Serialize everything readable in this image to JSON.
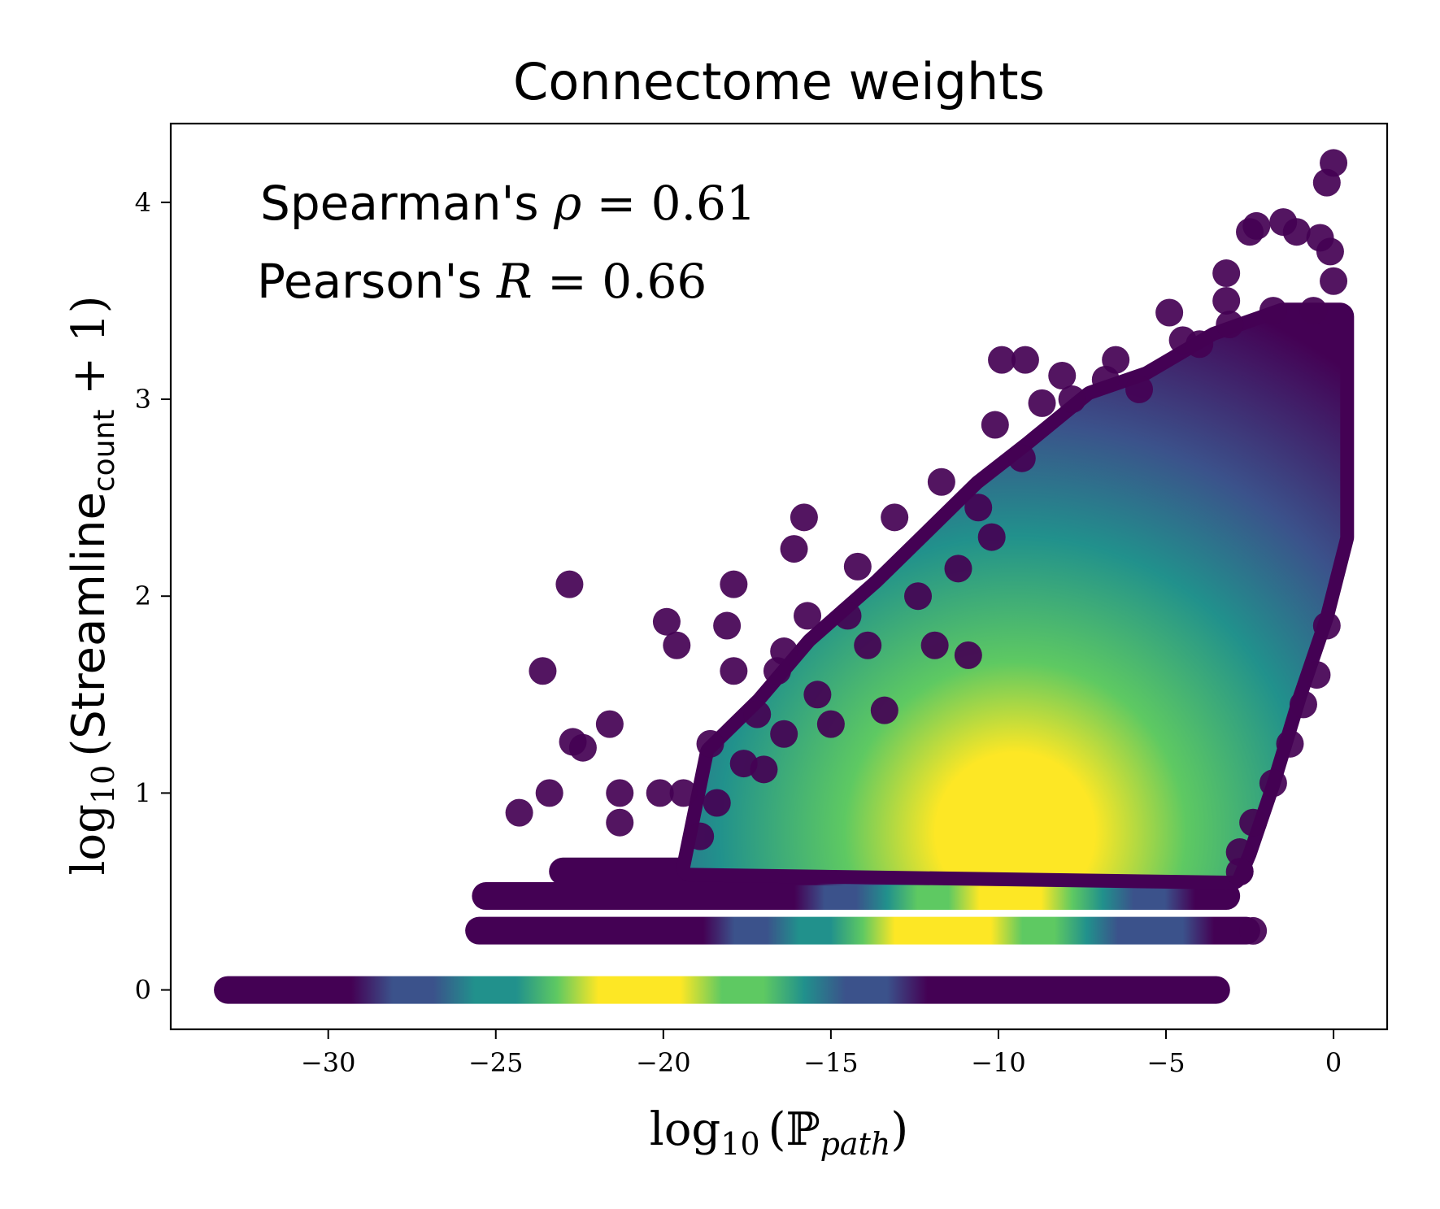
{
  "chart_data": {
    "type": "scatter",
    "title": "Connectome weights",
    "xlabel": {
      "prefix": "log",
      "sub": "10",
      "open": "(",
      "symbol": "ℙ",
      "symbol_sub": "path",
      "close": ")"
    },
    "ylabel": {
      "prefix": "log",
      "sub": "10",
      "open": "(",
      "word": "Streamline",
      "word_sub": "count",
      "rest": " + 1",
      "close": ")"
    },
    "xlim": [
      -34.7,
      1.6
    ],
    "ylim": [
      -0.2,
      4.4
    ],
    "xticks": [
      -30,
      -25,
      -20,
      -15,
      -10,
      -5,
      0
    ],
    "xtick_labels": [
      "−30",
      "−25",
      "−20",
      "−15",
      "−10",
      "−5",
      "0"
    ],
    "yticks": [
      0,
      1,
      2,
      3,
      4
    ],
    "ytick_labels": [
      "0",
      "1",
      "2",
      "3",
      "4"
    ],
    "annotations": [
      {
        "name": "Spearman's ",
        "symbol": "ρ",
        "value": " = 0.61"
      },
      {
        "name": "Pearson's ",
        "symbol": "R",
        "value": " = 0.66"
      }
    ],
    "colormap": [
      "#440154",
      "#3b528b",
      "#21918c",
      "#5ec962",
      "#fde725"
    ],
    "point_color": "#440154",
    "bands": [
      {
        "y": 0,
        "x": [
          -33,
          -3.5
        ],
        "peak_x": -20.5,
        "spread": 5.5
      },
      {
        "y": 0.301,
        "x": [
          -25.5,
          -2.6
        ],
        "peak_x": -11.5,
        "spread": 5.0
      },
      {
        "y": 0.477,
        "x": [
          -25.3,
          -3.2
        ],
        "peak_x": -10.0,
        "spread": 4.0
      },
      {
        "y": 0.602,
        "x": [
          -23.0,
          -2.8
        ],
        "peak_x": -9.5,
        "spread": 4.0
      }
    ],
    "sparse_points": [
      [
        -22.8,
        2.06
      ],
      [
        -19.9,
        1.87
      ],
      [
        -19.6,
        1.75
      ],
      [
        -23.6,
        1.62
      ],
      [
        -22.7,
        1.26
      ],
      [
        -22.4,
        1.23
      ],
      [
        -21.6,
        1.35
      ],
      [
        -23.4,
        1.0
      ],
      [
        -24.3,
        0.9
      ],
      [
        -21.3,
        1.0
      ],
      [
        -21.3,
        0.85
      ],
      [
        -20.1,
        1.0
      ],
      [
        -19.4,
        1.0
      ],
      [
        -17.9,
        2.06
      ],
      [
        -18.1,
        1.85
      ],
      [
        -17.9,
        1.62
      ],
      [
        -17.2,
        1.4
      ],
      [
        -18.6,
        1.25
      ],
      [
        -15.8,
        2.4
      ],
      [
        -16.1,
        2.24
      ],
      [
        -14.2,
        2.15
      ],
      [
        -13.1,
        2.4
      ],
      [
        -11.7,
        2.58
      ],
      [
        -10.1,
        2.87
      ],
      [
        -8.1,
        3.12
      ],
      [
        -9.2,
        3.2
      ],
      [
        -9.9,
        3.2
      ],
      [
        -6.5,
        3.2
      ],
      [
        -4.9,
        3.44
      ],
      [
        -3.2,
        3.5
      ],
      [
        -3.2,
        3.64
      ],
      [
        -3.1,
        3.38
      ],
      [
        -2.5,
        3.85
      ],
      [
        -2.3,
        3.88
      ],
      [
        -1.5,
        3.9
      ],
      [
        -1.1,
        3.85
      ],
      [
        -0.4,
        3.82
      ],
      [
        -0.2,
        4.1
      ],
      [
        0,
        4.2
      ],
      [
        0,
        3.6
      ],
      [
        -0.2,
        1.85
      ],
      [
        -0.5,
        1.6
      ],
      [
        -0.9,
        1.45
      ],
      [
        -1.3,
        1.25
      ],
      [
        -1.8,
        1.05
      ],
      [
        -2.4,
        0.85
      ],
      [
        -2.8,
        0.7
      ],
      [
        -2.4,
        0.3
      ],
      [
        -2.8,
        0.6
      ],
      [
        -14.5,
        1.9
      ],
      [
        -15.7,
        1.9
      ],
      [
        -16.4,
        1.72
      ],
      [
        -16.6,
        1.62
      ],
      [
        -15.4,
        1.5
      ],
      [
        -13.9,
        1.75
      ],
      [
        -12.4,
        2.0
      ],
      [
        -11.2,
        2.14
      ],
      [
        -10.6,
        2.45
      ],
      [
        -10.2,
        2.3
      ],
      [
        -9.3,
        2.7
      ],
      [
        -8.7,
        2.98
      ],
      [
        -7.8,
        3.0
      ],
      [
        -6.8,
        3.1
      ],
      [
        -5.8,
        3.05
      ],
      [
        -4.5,
        3.3
      ],
      [
        -4.0,
        3.28
      ],
      [
        -1.8,
        3.45
      ],
      [
        -0.6,
        3.45
      ],
      [
        -0.1,
        3.75
      ],
      [
        -18.9,
        0.78
      ],
      [
        -18.4,
        0.95
      ],
      [
        -17.6,
        1.15
      ],
      [
        -17.0,
        1.12
      ],
      [
        -16.4,
        1.3
      ],
      [
        -15.0,
        1.35
      ],
      [
        -13.4,
        1.42
      ],
      [
        -11.9,
        1.75
      ],
      [
        -10.9,
        1.7
      ]
    ]
  }
}
